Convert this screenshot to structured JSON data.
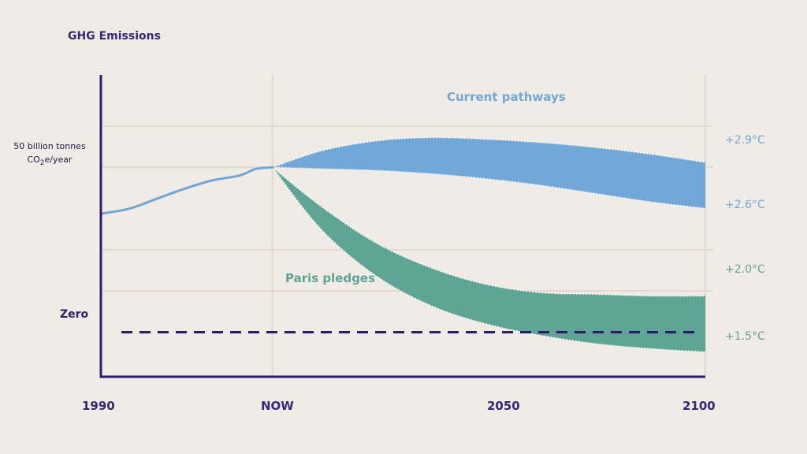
{
  "colors": {
    "background": "#f1ebe6",
    "axis": "#2f1b6b",
    "grid": "#e2d8cf",
    "history_line": "#6fa6d8",
    "current_pathways": "#72a8d7",
    "paris_pledges": "#5fa595",
    "zero_line": "#2f1b6b"
  },
  "chart_data": {
    "type": "area",
    "title": "",
    "ylabel": "GHG Emissions",
    "y_marker": {
      "line1": "50 billion tonnes",
      "co": "CO",
      "sub": "2",
      "rest": "e/year",
      "value": 50
    },
    "zero_label": "Zero",
    "x_ticks": [
      "1990",
      "NOW",
      "2050",
      "2100"
    ],
    "xlim": [
      1990,
      2100
    ],
    "ylim": [
      -13.5,
      78
    ],
    "now_year": 2021,
    "grid": true,
    "history": {
      "x": [
        1990,
        1995,
        2000,
        2005,
        2010,
        2015,
        2018,
        2021
      ],
      "y": [
        36,
        37.5,
        40.5,
        43.5,
        46,
        47.5,
        49.5,
        50
      ]
    },
    "series": [
      {
        "name": "Current pathways",
        "upper_label": "+2.9°C",
        "lower_label": "+2.6°C",
        "x": [
          2021,
          2030,
          2040,
          2050,
          2060,
          2070,
          2080,
          2090,
          2100
        ],
        "upper": [
          50,
          55,
          58,
          59,
          58.5,
          57.5,
          56,
          54,
          51.5
        ],
        "lower": [
          50,
          49.5,
          49,
          48,
          46.5,
          44.5,
          42,
          39.5,
          37.5
        ]
      },
      {
        "name": "Paris pledges",
        "upper_label": "+2.0°C",
        "lower_label": "+1.5°C",
        "x": [
          2021,
          2030,
          2040,
          2050,
          2060,
          2070,
          2080,
          2090,
          2100
        ],
        "upper": [
          50,
          38,
          27,
          19.5,
          14.5,
          12,
          11.5,
          11,
          11
        ],
        "lower": [
          50,
          31,
          17,
          8,
          2.5,
          -1,
          -3.5,
          -5,
          -6
        ]
      }
    ]
  }
}
